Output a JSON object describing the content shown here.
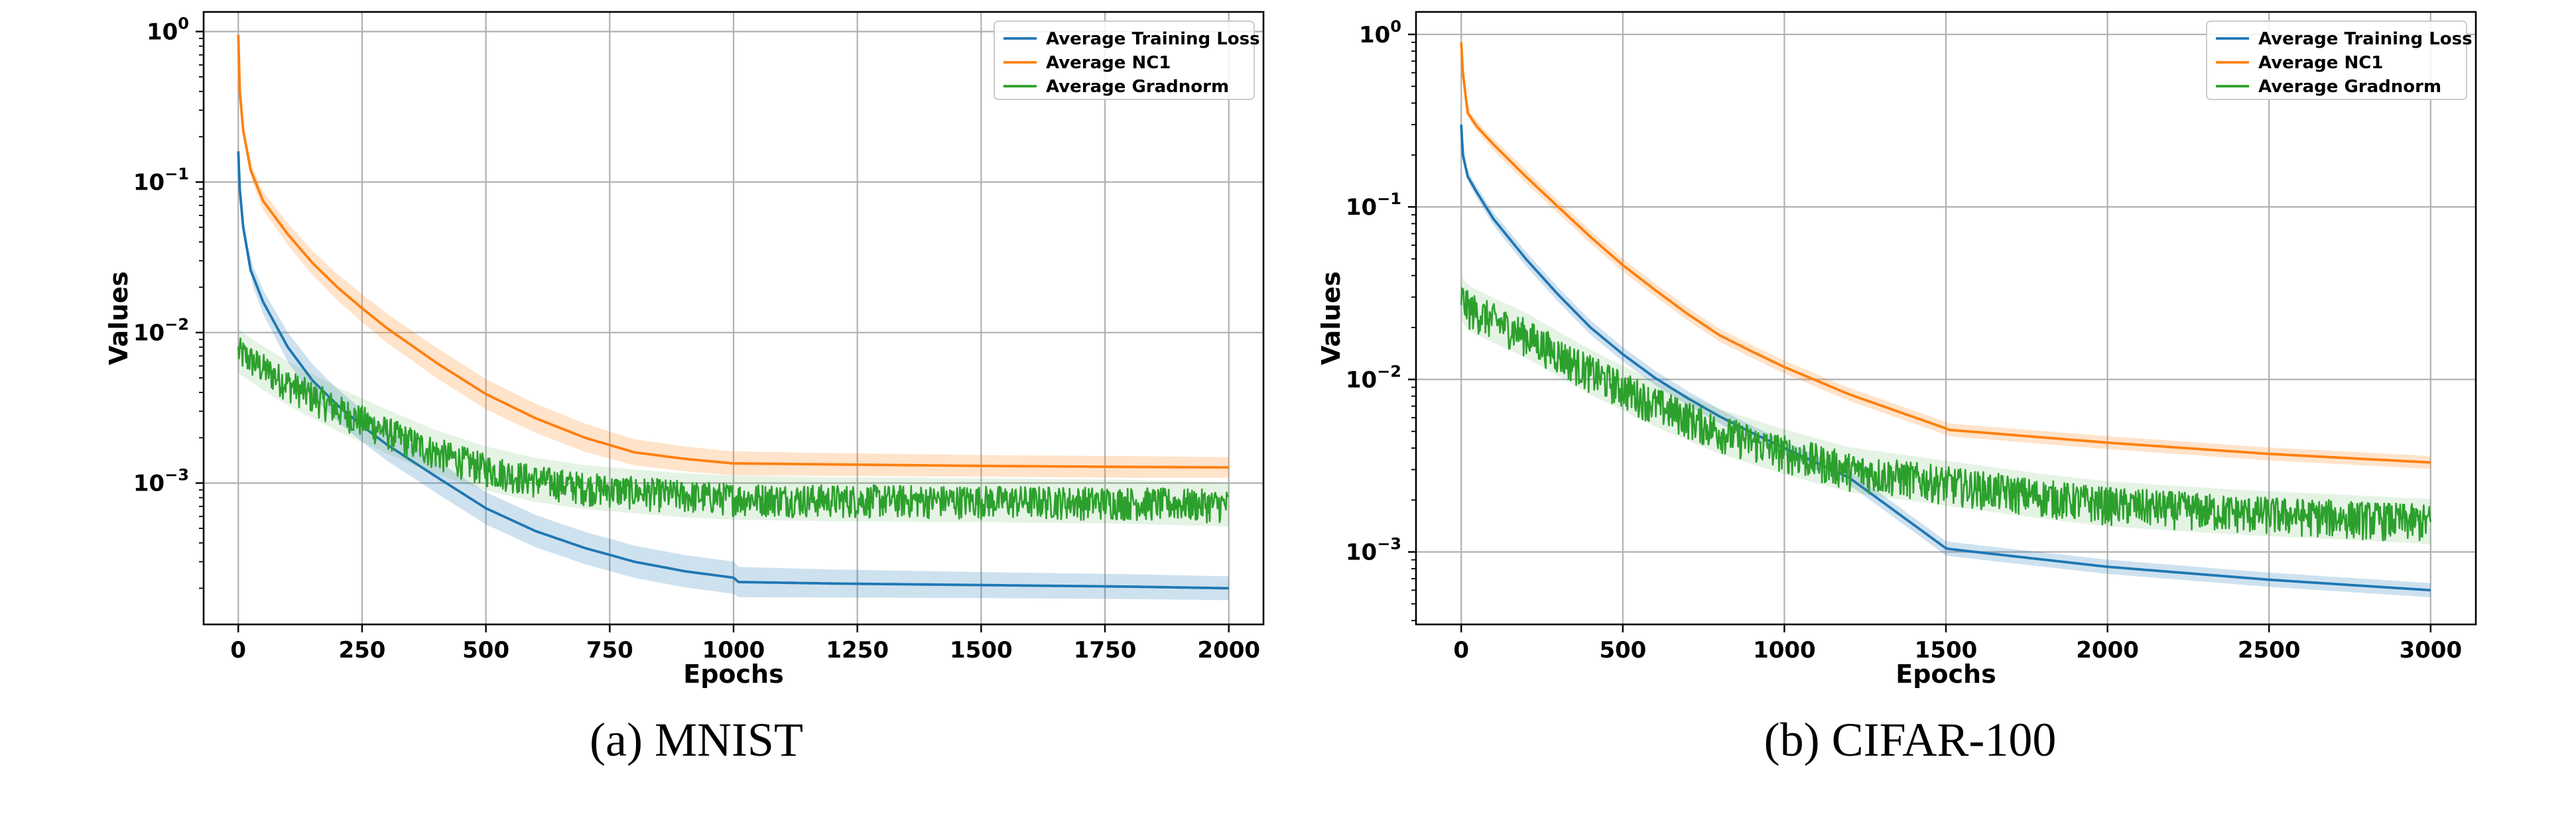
{
  "chart_data": [
    {
      "type": "line",
      "caption": "(a) MNIST",
      "xlabel": "Epochs",
      "ylabel": "Values",
      "yscale": "log",
      "xlim": [
        -70,
        2070
      ],
      "ylim": [
        0.000115,
        1.35
      ],
      "xticks": [
        0,
        250,
        500,
        750,
        1000,
        1250,
        1500,
        1750,
        2000
      ],
      "xtick_labels": [
        "0",
        "250",
        "500",
        "750",
        "1000",
        "1250",
        "1500",
        "1750",
        "2000"
      ],
      "yticks": [
        1,
        0.1,
        0.01,
        0.001
      ],
      "ytick_labels": [
        {
          "base": "10",
          "exp": "0"
        },
        {
          "base": "10",
          "exp": "−1"
        },
        {
          "base": "10",
          "exp": "−2"
        },
        {
          "base": "10",
          "exp": "−3"
        }
      ],
      "grid": true,
      "legend_position": "top-right",
      "series": [
        {
          "name": "Average Training Loss",
          "color": "#1f77b4",
          "x": [
            0,
            3,
            10,
            25,
            50,
            100,
            150,
            200,
            250,
            300,
            400,
            500,
            600,
            700,
            800,
            900,
            1000,
            1010,
            1200,
            1500,
            1800,
            2000
          ],
          "y": [
            0.16,
            0.09,
            0.05,
            0.026,
            0.016,
            0.008,
            0.0048,
            0.0033,
            0.0024,
            0.0018,
            0.0011,
            0.00068,
            0.00048,
            0.00037,
            0.0003,
            0.00026,
            0.000235,
            0.00022,
            0.000215,
            0.00021,
            0.000205,
            0.0002
          ],
          "band": [
            0.93,
            1.07,
            1.12,
            1.16,
            1.2,
            1.25,
            1.28,
            1.28,
            1.28,
            1.28,
            1.28,
            1.28,
            1.28,
            1.28,
            1.28,
            1.28,
            1.28,
            1.26,
            1.24,
            1.22,
            1.21,
            1.2
          ]
        },
        {
          "name": "Average NC1",
          "color": "#ff7f0e",
          "x": [
            0,
            3,
            10,
            25,
            50,
            100,
            150,
            200,
            250,
            300,
            400,
            500,
            600,
            700,
            800,
            900,
            1000,
            1010,
            1200,
            1500,
            1800,
            2000
          ],
          "y": [
            0.95,
            0.4,
            0.22,
            0.12,
            0.075,
            0.045,
            0.029,
            0.02,
            0.0145,
            0.0107,
            0.0063,
            0.0039,
            0.0027,
            0.002,
            0.0016,
            0.00145,
            0.00135,
            0.00135,
            0.00133,
            0.0013,
            0.00128,
            0.00127
          ],
          "band": [
            1.04,
            1.08,
            1.1,
            1.12,
            1.15,
            1.18,
            1.2,
            1.22,
            1.24,
            1.25,
            1.26,
            1.26,
            1.25,
            1.24,
            1.22,
            1.21,
            1.2,
            1.2,
            1.19,
            1.18,
            1.18,
            1.17
          ]
        },
        {
          "name": "Average Gradnorm",
          "color": "#2ca02c",
          "noisy": true,
          "x": [
            0,
            50,
            100,
            200,
            300,
            400,
            500,
            600,
            700,
            800,
            900,
            1000,
            1200,
            1500,
            1800,
            2000
          ],
          "y": [
            0.0075,
            0.0058,
            0.0046,
            0.0031,
            0.0022,
            0.0016,
            0.00125,
            0.00105,
            0.00094,
            0.00088,
            0.00083,
            0.0008,
            0.00078,
            0.00077,
            0.00075,
            0.00072
          ],
          "band": [
            1.4,
            1.4,
            1.4,
            1.4,
            1.4,
            1.4,
            1.4,
            1.4,
            1.4,
            1.4,
            1.4,
            1.4,
            1.4,
            1.4,
            1.4,
            1.4
          ]
        }
      ]
    },
    {
      "type": "line",
      "caption": "(b) CIFAR-100",
      "xlabel": "Epochs",
      "ylabel": "Values",
      "yscale": "log",
      "xlim": [
        -140,
        3140
      ],
      "ylim": [
        0.00038,
        1.35
      ],
      "xticks": [
        0,
        500,
        1000,
        1500,
        2000,
        2500,
        3000
      ],
      "xtick_labels": [
        "0",
        "500",
        "1000",
        "1500",
        "2000",
        "2500",
        "3000"
      ],
      "yticks": [
        1,
        0.1,
        0.01,
        0.001
      ],
      "ytick_labels": [
        {
          "base": "10",
          "exp": "0"
        },
        {
          "base": "10",
          "exp": "−1"
        },
        {
          "base": "10",
          "exp": "−2"
        },
        {
          "base": "10",
          "exp": "−3"
        }
      ],
      "grid": true,
      "legend_position": "top-right",
      "series": [
        {
          "name": "Average Training Loss",
          "color": "#1f77b4",
          "x": [
            0,
            5,
            20,
            50,
            100,
            200,
            300,
            400,
            500,
            600,
            700,
            800,
            900,
            1000,
            1200,
            1500,
            1510,
            2000,
            2500,
            3000
          ],
          "y": [
            0.3,
            0.2,
            0.15,
            0.12,
            0.085,
            0.05,
            0.031,
            0.02,
            0.014,
            0.0102,
            0.0078,
            0.0061,
            0.0049,
            0.004,
            0.0027,
            0.00105,
            0.00104,
            0.00082,
            0.00069,
            0.0006
          ],
          "band": [
            1.03,
            1.05,
            1.07,
            1.08,
            1.09,
            1.1,
            1.1,
            1.1,
            1.1,
            1.1,
            1.1,
            1.1,
            1.1,
            1.1,
            1.1,
            1.1,
            1.1,
            1.1,
            1.1,
            1.1
          ]
        },
        {
          "name": "Average NC1",
          "color": "#ff7f0e",
          "x": [
            0,
            5,
            20,
            50,
            100,
            200,
            300,
            400,
            500,
            600,
            700,
            800,
            900,
            1000,
            1200,
            1500,
            1510,
            2000,
            2500,
            3000
          ],
          "y": [
            0.9,
            0.6,
            0.35,
            0.29,
            0.23,
            0.15,
            0.1,
            0.067,
            0.046,
            0.033,
            0.024,
            0.018,
            0.0145,
            0.0118,
            0.0082,
            0.0052,
            0.0051,
            0.0043,
            0.0037,
            0.0033
          ],
          "band": [
            1.03,
            1.05,
            1.06,
            1.07,
            1.08,
            1.09,
            1.09,
            1.09,
            1.09,
            1.09,
            1.09,
            1.09,
            1.09,
            1.09,
            1.09,
            1.09,
            1.09,
            1.09,
            1.09,
            1.09
          ]
        },
        {
          "name": "Average Gradnorm",
          "color": "#2ca02c",
          "noisy": true,
          "x": [
            0,
            20,
            100,
            200,
            400,
            600,
            800,
            1000,
            1200,
            1500,
            1800,
            2000,
            2400,
            2700,
            3000
          ],
          "y": [
            0.03,
            0.026,
            0.022,
            0.018,
            0.011,
            0.0072,
            0.005,
            0.0038,
            0.003,
            0.0025,
            0.0021,
            0.0019,
            0.0017,
            0.0016,
            0.0015
          ],
          "band": [
            1.35,
            1.35,
            1.35,
            1.35,
            1.35,
            1.35,
            1.35,
            1.35,
            1.35,
            1.35,
            1.35,
            1.35,
            1.35,
            1.35,
            1.35
          ]
        }
      ]
    }
  ]
}
